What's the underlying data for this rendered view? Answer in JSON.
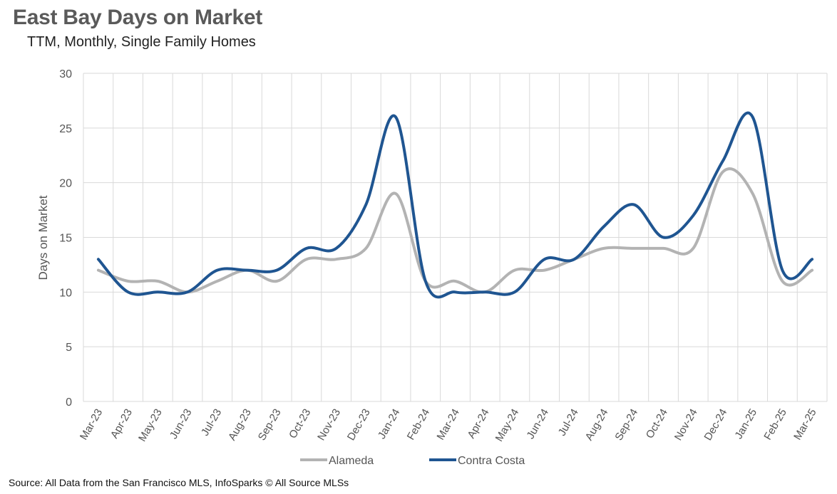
{
  "header": {
    "title": "East Bay Days on Market",
    "subtitle": "TTM, Monthly, Single Family Homes"
  },
  "footer": {
    "source": "Source: All Data from the San Francisco MLS, InfoSparks © All Source MLSs"
  },
  "colors": {
    "alameda": "#b3b3b3",
    "contra_costa": "#1f5591",
    "grid": "#d9d9d9"
  },
  "chart_data": {
    "type": "line",
    "title": "East Bay Days on Market",
    "subtitle": "TTM, Monthly, Single Family Homes",
    "xlabel": "",
    "ylabel": "Days on Market",
    "ylim": [
      0,
      30
    ],
    "yticks": [
      0,
      5,
      10,
      15,
      20,
      25,
      30
    ],
    "grid": true,
    "legend_position": "bottom",
    "categories": [
      "Mar-23",
      "Apr-23",
      "May-23",
      "Jun-23",
      "Jul-23",
      "Aug-23",
      "Sep-23",
      "Oct-23",
      "Nov-23",
      "Dec-23",
      "Jan-24",
      "Feb-24",
      "Mar-24",
      "Apr-24",
      "May-24",
      "Jun-24",
      "Jul-24",
      "Aug-24",
      "Sep-24",
      "Oct-24",
      "Nov-24",
      "Dec-24",
      "Jan-25",
      "Feb-25",
      "Mar-25"
    ],
    "series": [
      {
        "name": "Alameda",
        "values": [
          12,
          11,
          11,
          10,
          11,
          12,
          11,
          13,
          13,
          14,
          19,
          11,
          11,
          10,
          12,
          12,
          13,
          14,
          14,
          14,
          14,
          21,
          19,
          11,
          12
        ]
      },
      {
        "name": "Contra Costa",
        "values": [
          13,
          10,
          10,
          10,
          12,
          12,
          12,
          14,
          14,
          18,
          26,
          11,
          10,
          10,
          10,
          13,
          13,
          16,
          18,
          15,
          17,
          22,
          26,
          12,
          13
        ]
      }
    ]
  }
}
